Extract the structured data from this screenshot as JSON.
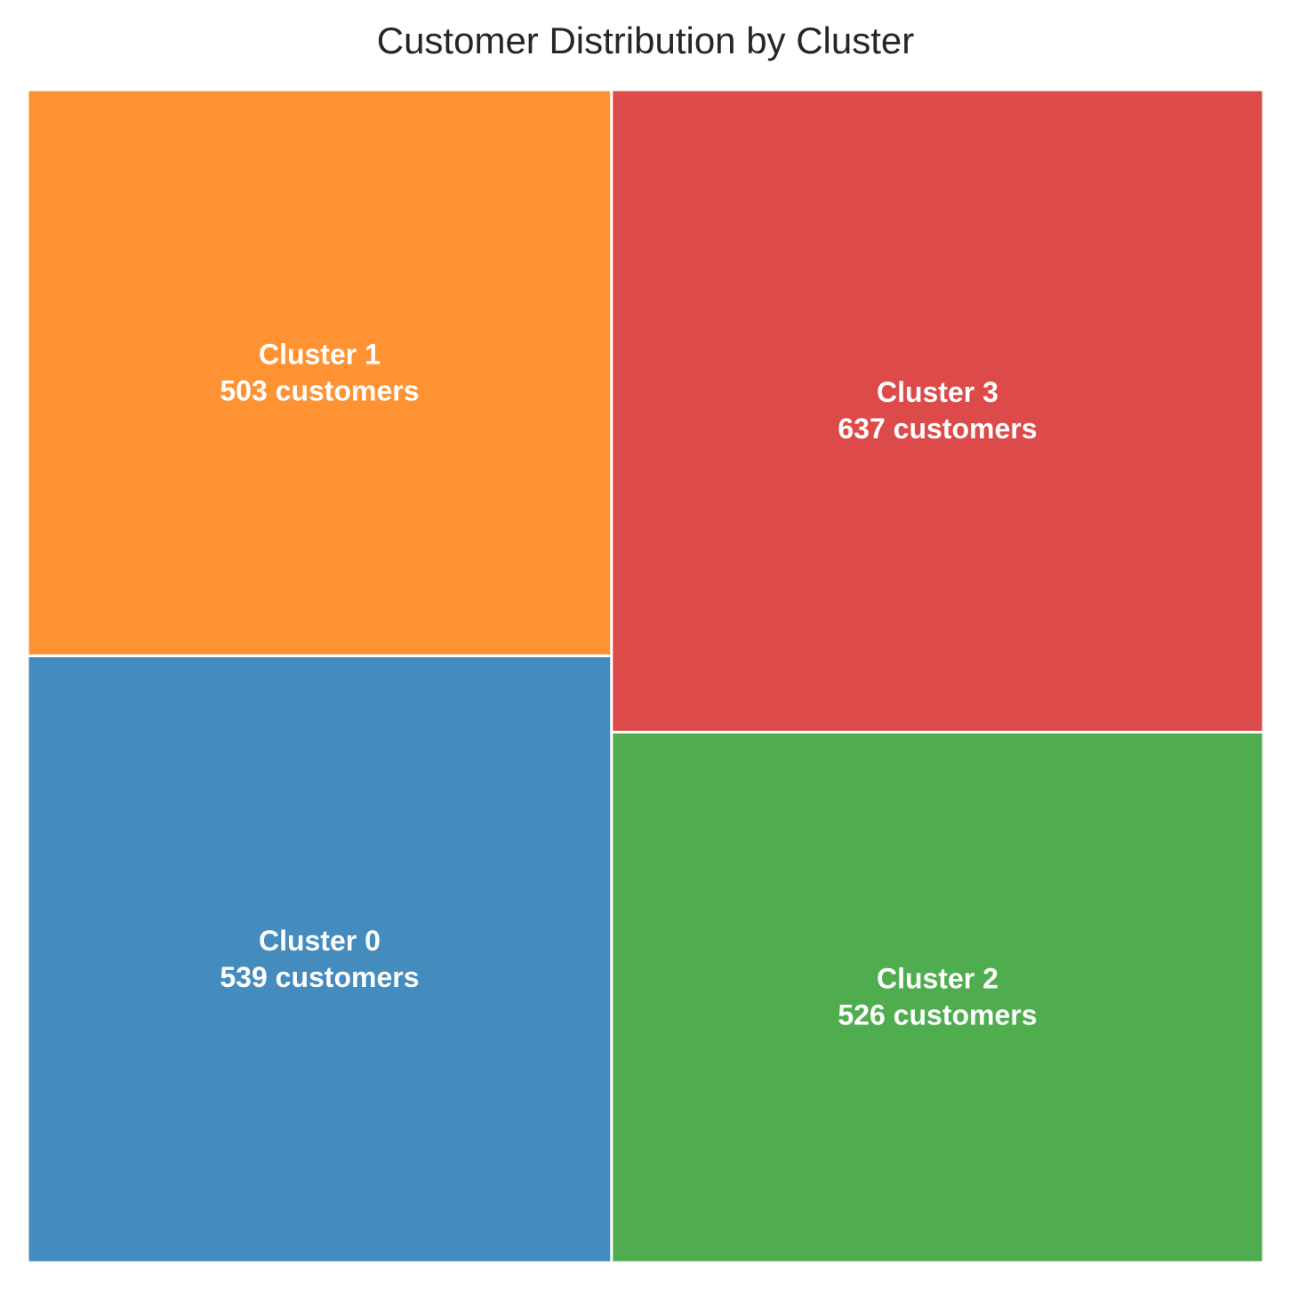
{
  "chart_data": {
    "type": "treemap",
    "title": "Customer Distribution by Cluster",
    "unit_label": "customers",
    "items": [
      {
        "name": "Cluster 1",
        "value": 503,
        "value_label": "503 customers",
        "color": "#ff9232"
      },
      {
        "name": "Cluster 0",
        "value": 539,
        "value_label": "539 customers",
        "color": "#448bbe"
      },
      {
        "name": "Cluster 3",
        "value": 637,
        "value_label": "637 customers",
        "color": "#dc4a4a"
      },
      {
        "name": "Cluster 2",
        "value": 526,
        "value_label": "526 customers",
        "color": "#50ad4f"
      }
    ],
    "border_color": "#ffffff"
  }
}
